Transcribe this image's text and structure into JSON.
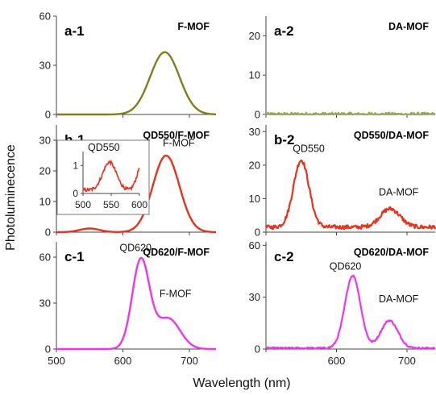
{
  "figure": {
    "xlabel": "Wavelength (nm)",
    "ylabel": "Photoluminecence"
  },
  "chart_data": [
    {
      "id": "a-1",
      "type": "line",
      "label": "a-1",
      "title": "F-MOF",
      "xlim": [
        500,
        740
      ],
      "ylim": [
        0,
        60
      ],
      "xticks": [],
      "yticks": [
        0,
        30,
        60
      ],
      "color": "#7f7f22",
      "peaks": [
        {
          "center": 663,
          "sigma": 22,
          "amp": 38
        }
      ],
      "annotations": []
    },
    {
      "id": "a-2",
      "type": "line",
      "label": "a-2",
      "title": "DA-MOF",
      "xlim": [
        500,
        740
      ],
      "ylim": [
        0,
        25
      ],
      "xticks": [],
      "yticks": [
        0,
        10,
        20
      ],
      "color": "#9aa55a",
      "peaks": [],
      "noise": 0.5,
      "annotations": []
    },
    {
      "id": "b-1",
      "type": "line",
      "label": "b-1",
      "title": "QD550/F-MOF",
      "xlim": [
        500,
        740
      ],
      "ylim": [
        0,
        35
      ],
      "xticks": [],
      "yticks": [
        0,
        10,
        20,
        30
      ],
      "color": "#e8321e",
      "peaks": [
        {
          "center": 665,
          "sigma": 20,
          "amp": 25
        },
        {
          "center": 550,
          "sigma": 15,
          "amp": 1.2
        }
      ],
      "annotations": [
        {
          "text": "F-MOF",
          "x": 660,
          "y": 28
        }
      ],
      "inset": {
        "title": "QD550",
        "xlim": [
          500,
          600
        ],
        "ylim": [
          0,
          1.5
        ],
        "xticks": [
          500,
          550,
          600
        ],
        "yticks": [
          0,
          1
        ],
        "peaks": [
          {
            "center": 547,
            "sigma": 12,
            "amp": 1.0
          }
        ],
        "rise_start": 580
      }
    },
    {
      "id": "b-2",
      "type": "line",
      "label": "b-2",
      "title": "QD550/DA-MOF",
      "xlim": [
        500,
        740
      ],
      "ylim": [
        0,
        32
      ],
      "xticks": [],
      "yticks": [
        0,
        10,
        20,
        30
      ],
      "color": "#e8321e",
      "peaks": [
        {
          "center": 550,
          "sigma": 11,
          "amp": 20
        },
        {
          "center": 676,
          "sigma": 14,
          "amp": 5.5
        }
      ],
      "baseline": 1.5,
      "noise": 0.6,
      "annotations": [
        {
          "text": "QD550",
          "x": 538,
          "y": 24
        },
        {
          "text": "DA-MOF",
          "x": 660,
          "y": 11
        }
      ]
    },
    {
      "id": "c-1",
      "type": "line",
      "label": "c-1",
      "title": "QD620/F-MOF",
      "xlim": [
        500,
        740
      ],
      "ylim": [
        0,
        70
      ],
      "xticks": [
        500,
        600,
        700
      ],
      "yticks": [
        0,
        30,
        60
      ],
      "color": "#ee35ee",
      "peaks": [
        {
          "center": 627,
          "sigma": 13,
          "amp": 58
        },
        {
          "center": 668,
          "sigma": 18,
          "amp": 20
        }
      ],
      "annotations": [
        {
          "text": "QD620",
          "x": 595,
          "y": 64
        },
        {
          "text": "F-MOF",
          "x": 655,
          "y": 34
        }
      ]
    },
    {
      "id": "c-2",
      "type": "line",
      "label": "c-2",
      "title": "QD620/DA-MOF",
      "xlim": [
        500,
        740
      ],
      "ylim": [
        0,
        62
      ],
      "xticks": [
        600,
        700
      ],
      "yticks": [
        0,
        30,
        60
      ],
      "color": "#ee35ee",
      "peaks": [
        {
          "center": 623,
          "sigma": 11,
          "amp": 42
        },
        {
          "center": 675,
          "sigma": 12,
          "amp": 16
        }
      ],
      "baseline": 0.5,
      "noise": 0.5,
      "annotations": [
        {
          "text": "QD620",
          "x": 590,
          "y": 46
        },
        {
          "text": "DA-MOF",
          "x": 660,
          "y": 27
        }
      ]
    }
  ]
}
